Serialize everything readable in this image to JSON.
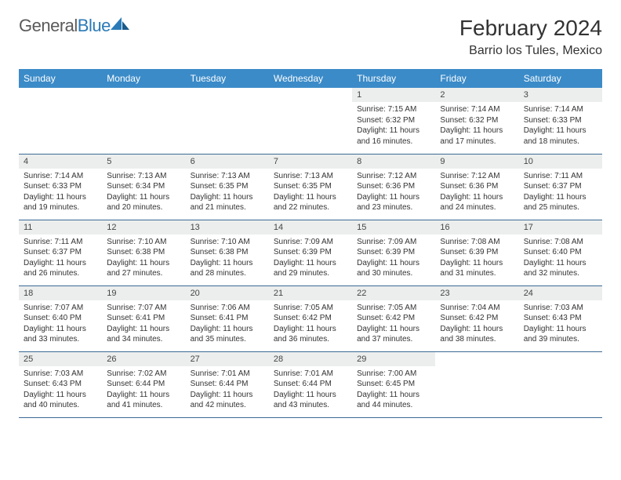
{
  "brand": {
    "part1": "General",
    "part2": "Blue"
  },
  "title": "February 2024",
  "location": "Barrio los Tules, Mexico",
  "colors": {
    "header_bg": "#3b8bc8",
    "header_text": "#ffffff",
    "daynum_bg": "#eceeee",
    "border": "#3b6a94",
    "brand_blue": "#2a7ab8",
    "brand_gray": "#5a5a5a",
    "body_text": "#333333"
  },
  "typography": {
    "title_fontsize": 28,
    "location_fontsize": 16,
    "dayhead_fontsize": 12,
    "daynum_fontsize": 11,
    "body_fontsize": 10
  },
  "day_names": [
    "Sunday",
    "Monday",
    "Tuesday",
    "Wednesday",
    "Thursday",
    "Friday",
    "Saturday"
  ],
  "weeks": [
    [
      {
        "empty": true
      },
      {
        "empty": true
      },
      {
        "empty": true
      },
      {
        "empty": true
      },
      {
        "num": "1",
        "sunrise": "Sunrise: 7:15 AM",
        "sunset": "Sunset: 6:32 PM",
        "day1": "Daylight: 11 hours",
        "day2": "and 16 minutes."
      },
      {
        "num": "2",
        "sunrise": "Sunrise: 7:14 AM",
        "sunset": "Sunset: 6:32 PM",
        "day1": "Daylight: 11 hours",
        "day2": "and 17 minutes."
      },
      {
        "num": "3",
        "sunrise": "Sunrise: 7:14 AM",
        "sunset": "Sunset: 6:33 PM",
        "day1": "Daylight: 11 hours",
        "day2": "and 18 minutes."
      }
    ],
    [
      {
        "num": "4",
        "sunrise": "Sunrise: 7:14 AM",
        "sunset": "Sunset: 6:33 PM",
        "day1": "Daylight: 11 hours",
        "day2": "and 19 minutes."
      },
      {
        "num": "5",
        "sunrise": "Sunrise: 7:13 AM",
        "sunset": "Sunset: 6:34 PM",
        "day1": "Daylight: 11 hours",
        "day2": "and 20 minutes."
      },
      {
        "num": "6",
        "sunrise": "Sunrise: 7:13 AM",
        "sunset": "Sunset: 6:35 PM",
        "day1": "Daylight: 11 hours",
        "day2": "and 21 minutes."
      },
      {
        "num": "7",
        "sunrise": "Sunrise: 7:13 AM",
        "sunset": "Sunset: 6:35 PM",
        "day1": "Daylight: 11 hours",
        "day2": "and 22 minutes."
      },
      {
        "num": "8",
        "sunrise": "Sunrise: 7:12 AM",
        "sunset": "Sunset: 6:36 PM",
        "day1": "Daylight: 11 hours",
        "day2": "and 23 minutes."
      },
      {
        "num": "9",
        "sunrise": "Sunrise: 7:12 AM",
        "sunset": "Sunset: 6:36 PM",
        "day1": "Daylight: 11 hours",
        "day2": "and 24 minutes."
      },
      {
        "num": "10",
        "sunrise": "Sunrise: 7:11 AM",
        "sunset": "Sunset: 6:37 PM",
        "day1": "Daylight: 11 hours",
        "day2": "and 25 minutes."
      }
    ],
    [
      {
        "num": "11",
        "sunrise": "Sunrise: 7:11 AM",
        "sunset": "Sunset: 6:37 PM",
        "day1": "Daylight: 11 hours",
        "day2": "and 26 minutes."
      },
      {
        "num": "12",
        "sunrise": "Sunrise: 7:10 AM",
        "sunset": "Sunset: 6:38 PM",
        "day1": "Daylight: 11 hours",
        "day2": "and 27 minutes."
      },
      {
        "num": "13",
        "sunrise": "Sunrise: 7:10 AM",
        "sunset": "Sunset: 6:38 PM",
        "day1": "Daylight: 11 hours",
        "day2": "and 28 minutes."
      },
      {
        "num": "14",
        "sunrise": "Sunrise: 7:09 AM",
        "sunset": "Sunset: 6:39 PM",
        "day1": "Daylight: 11 hours",
        "day2": "and 29 minutes."
      },
      {
        "num": "15",
        "sunrise": "Sunrise: 7:09 AM",
        "sunset": "Sunset: 6:39 PM",
        "day1": "Daylight: 11 hours",
        "day2": "and 30 minutes."
      },
      {
        "num": "16",
        "sunrise": "Sunrise: 7:08 AM",
        "sunset": "Sunset: 6:39 PM",
        "day1": "Daylight: 11 hours",
        "day2": "and 31 minutes."
      },
      {
        "num": "17",
        "sunrise": "Sunrise: 7:08 AM",
        "sunset": "Sunset: 6:40 PM",
        "day1": "Daylight: 11 hours",
        "day2": "and 32 minutes."
      }
    ],
    [
      {
        "num": "18",
        "sunrise": "Sunrise: 7:07 AM",
        "sunset": "Sunset: 6:40 PM",
        "day1": "Daylight: 11 hours",
        "day2": "and 33 minutes."
      },
      {
        "num": "19",
        "sunrise": "Sunrise: 7:07 AM",
        "sunset": "Sunset: 6:41 PM",
        "day1": "Daylight: 11 hours",
        "day2": "and 34 minutes."
      },
      {
        "num": "20",
        "sunrise": "Sunrise: 7:06 AM",
        "sunset": "Sunset: 6:41 PM",
        "day1": "Daylight: 11 hours",
        "day2": "and 35 minutes."
      },
      {
        "num": "21",
        "sunrise": "Sunrise: 7:05 AM",
        "sunset": "Sunset: 6:42 PM",
        "day1": "Daylight: 11 hours",
        "day2": "and 36 minutes."
      },
      {
        "num": "22",
        "sunrise": "Sunrise: 7:05 AM",
        "sunset": "Sunset: 6:42 PM",
        "day1": "Daylight: 11 hours",
        "day2": "and 37 minutes."
      },
      {
        "num": "23",
        "sunrise": "Sunrise: 7:04 AM",
        "sunset": "Sunset: 6:42 PM",
        "day1": "Daylight: 11 hours",
        "day2": "and 38 minutes."
      },
      {
        "num": "24",
        "sunrise": "Sunrise: 7:03 AM",
        "sunset": "Sunset: 6:43 PM",
        "day1": "Daylight: 11 hours",
        "day2": "and 39 minutes."
      }
    ],
    [
      {
        "num": "25",
        "sunrise": "Sunrise: 7:03 AM",
        "sunset": "Sunset: 6:43 PM",
        "day1": "Daylight: 11 hours",
        "day2": "and 40 minutes."
      },
      {
        "num": "26",
        "sunrise": "Sunrise: 7:02 AM",
        "sunset": "Sunset: 6:44 PM",
        "day1": "Daylight: 11 hours",
        "day2": "and 41 minutes."
      },
      {
        "num": "27",
        "sunrise": "Sunrise: 7:01 AM",
        "sunset": "Sunset: 6:44 PM",
        "day1": "Daylight: 11 hours",
        "day2": "and 42 minutes."
      },
      {
        "num": "28",
        "sunrise": "Sunrise: 7:01 AM",
        "sunset": "Sunset: 6:44 PM",
        "day1": "Daylight: 11 hours",
        "day2": "and 43 minutes."
      },
      {
        "num": "29",
        "sunrise": "Sunrise: 7:00 AM",
        "sunset": "Sunset: 6:45 PM",
        "day1": "Daylight: 11 hours",
        "day2": "and 44 minutes."
      },
      {
        "empty": true
      },
      {
        "empty": true
      }
    ]
  ]
}
